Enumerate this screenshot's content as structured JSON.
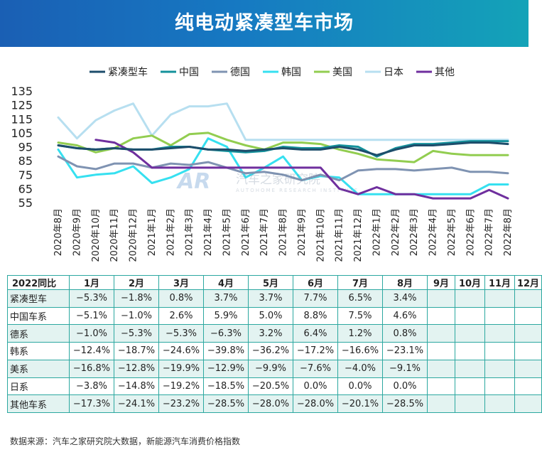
{
  "header": {
    "title": "纯电动紧凑型车市场"
  },
  "chart_data": {
    "type": "line",
    "categories": [
      "2020年8月",
      "2020年9月",
      "2020年10月",
      "2020年11月",
      "2020年12月",
      "2021年1月",
      "2021年2月",
      "2021年3月",
      "2021年4月",
      "2021年5月",
      "2021年6月",
      "2021年7月",
      "2021年8月",
      "2021年9月",
      "2021年10月",
      "2021年11月",
      "2021年12月",
      "2022年1月",
      "2022年2月",
      "2022年3月",
      "2022年4月",
      "2022年5月",
      "2022年6月",
      "2022年7月",
      "2022年8月"
    ],
    "ylim": [
      55,
      135
    ],
    "yticks": [
      55,
      65,
      75,
      85,
      95,
      105,
      115,
      125,
      135
    ],
    "legend_position": "top",
    "series": [
      {
        "name": "紧凑型车",
        "color": "#1d4d6b",
        "values": [
          96,
          94,
          93,
          94,
          93,
          93,
          94,
          95,
          93,
          93,
          92,
          93,
          94,
          93,
          93,
          95,
          93,
          89,
          93,
          96,
          96,
          97,
          98,
          98,
          97
        ]
      },
      {
        "name": "中国",
        "color": "#14919b",
        "values": [
          96,
          94,
          93,
          94,
          93,
          93,
          95,
          95,
          93,
          92,
          91,
          92,
          95,
          94,
          94,
          96,
          95,
          88,
          94,
          97,
          97,
          98,
          99,
          99,
          99
        ]
      },
      {
        "name": "德国",
        "color": "#7f93b2",
        "values": [
          88,
          81,
          79,
          83,
          83,
          80,
          83,
          82,
          84,
          80,
          76,
          77,
          75,
          71,
          75,
          71,
          78,
          79,
          79,
          78,
          79,
          80,
          77,
          77,
          76
        ]
      },
      {
        "name": "韩国",
        "color": "#36e0f0",
        "values": [
          93,
          73,
          75,
          76,
          81,
          69,
          73,
          79,
          101,
          95,
          73,
          80,
          88,
          71,
          74,
          73,
          61,
          61,
          61,
          61,
          61,
          61,
          61,
          68,
          68
        ]
      },
      {
        "name": "美国",
        "color": "#92cd50",
        "values": [
          98,
          96,
          91,
          94,
          101,
          103,
          96,
          104,
          105,
          100,
          96,
          93,
          98,
          98,
          97,
          93,
          90,
          86,
          85,
          84,
          92,
          90,
          89,
          89,
          89
        ]
      },
      {
        "name": "日本",
        "color": "#b7dff0",
        "values": [
          116,
          101,
          114,
          121,
          126,
          103,
          118,
          124,
          124,
          126,
          100,
          100,
          100,
          100,
          100,
          100,
          100,
          100,
          100,
          100,
          100,
          100,
          100,
          100,
          100
        ]
      },
      {
        "name": "其他",
        "color": "#6f2f9e",
        "values": [
          null,
          null,
          100,
          98,
          91,
          80,
          80,
          80,
          80,
          80,
          80,
          80,
          80,
          80,
          80,
          65,
          61,
          66,
          61,
          61,
          58,
          58,
          58,
          64,
          58
        ]
      }
    ]
  },
  "table": {
    "corner": "2022同比",
    "columns": [
      "1月",
      "2月",
      "3月",
      "4月",
      "5月",
      "6月",
      "7月",
      "8月",
      "9月",
      "10月",
      "11月",
      "12月"
    ],
    "rows": [
      {
        "label": "紧凑型车",
        "values": [
          "−5.3%",
          "−1.8%",
          "0.8%",
          "3.7%",
          "3.7%",
          "7.7%",
          "6.5%",
          "3.4%",
          "",
          "",
          "",
          ""
        ]
      },
      {
        "label": "中国车系",
        "values": [
          "−5.1%",
          "−1.0%",
          "2.6%",
          "5.9%",
          "5.0%",
          "8.8%",
          "7.5%",
          "4.6%",
          "",
          "",
          "",
          ""
        ]
      },
      {
        "label": "德系",
        "values": [
          "−1.0%",
          "−5.3%",
          "−5.3%",
          "−6.3%",
          "3.2%",
          "6.4%",
          "1.2%",
          "0.8%",
          "",
          "",
          "",
          ""
        ]
      },
      {
        "label": "韩系",
        "values": [
          "−12.4%",
          "−18.7%",
          "−24.6%",
          "−39.8%",
          "−36.2%",
          "−17.2%",
          "−16.6%",
          "−23.1%",
          "",
          "",
          "",
          ""
        ]
      },
      {
        "label": "美系",
        "values": [
          "−16.8%",
          "−12.8%",
          "−19.9%",
          "−12.9%",
          "−9.9%",
          "−7.6%",
          "−4.0%",
          "−9.1%",
          "",
          "",
          "",
          ""
        ]
      },
      {
        "label": "日系",
        "values": [
          "−3.8%",
          "−14.8%",
          "−19.2%",
          "−18.5%",
          "−20.5%",
          "0.0%",
          "0.0%",
          "0.0%",
          "",
          "",
          "",
          ""
        ]
      },
      {
        "label": "其他车系",
        "values": [
          "−17.3%",
          "−24.1%",
          "−23.2%",
          "−28.5%",
          "−28.0%",
          "−28.0%",
          "−20.1%",
          "−28.5%",
          "",
          "",
          "",
          ""
        ]
      }
    ]
  },
  "watermark": {
    "logo": "AR",
    "text": "汽车之家研究院",
    "subtext": "AUTOHOME RESEARCH INSTITUTE"
  },
  "footer": {
    "source": "数据来源：汽车之家研究院大数据，新能源汽车消费价格指数"
  }
}
